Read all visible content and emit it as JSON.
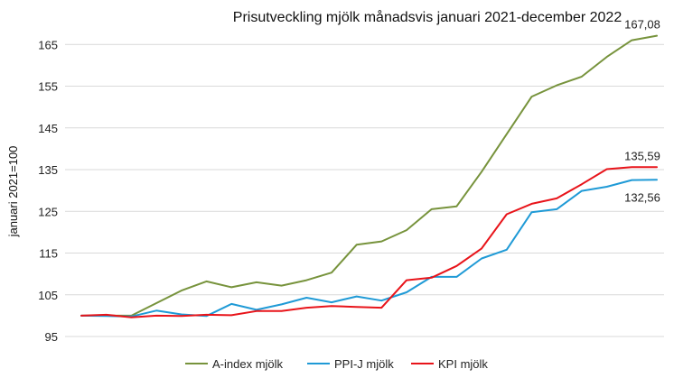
{
  "chart_data": {
    "type": "line",
    "title": "Prisutveckling mjölk månadsvis januari 2021-december 2022",
    "xlabel": "",
    "ylabel": "januari 2021=100",
    "ylim": [
      95,
      167
    ],
    "yticks": [
      95,
      105,
      115,
      125,
      135,
      145,
      155,
      165
    ],
    "ytick_labels": [
      "95",
      "105",
      "115",
      "125",
      "135",
      "145",
      "155",
      "165"
    ],
    "x": [
      1,
      2,
      3,
      4,
      5,
      6,
      7,
      8,
      9,
      10,
      11,
      12,
      13,
      14,
      15,
      16,
      17,
      18,
      19,
      20,
      21,
      22,
      23,
      24
    ],
    "grid": true,
    "legend_position": "bottom",
    "series": [
      {
        "name": "A-index mjölk",
        "color": "#77933c",
        "values": [
          100,
          100,
          100,
          103,
          106,
          108.2,
          106.8,
          108,
          107.2,
          108.5,
          110.3,
          117,
          117.8,
          120.5,
          125.5,
          126.2,
          134.5,
          143.5,
          152.5,
          155.2,
          157.3,
          162,
          166,
          167.08
        ]
      },
      {
        "name": "PPI-J mjölk",
        "color": "#1f9ad6",
        "values": [
          100,
          99.9,
          99.8,
          101.2,
          100.3,
          99.9,
          102.8,
          101.4,
          102.7,
          104.3,
          103.2,
          104.6,
          103.6,
          105.6,
          109.3,
          109.3,
          113.7,
          115.8,
          124.8,
          125.5,
          129.9,
          130.9,
          132.5,
          132.56
        ]
      },
      {
        "name": "KPI mjölk",
        "color": "#e8141a",
        "values": [
          100,
          100.2,
          99.6,
          100,
          99.9,
          100.2,
          100.1,
          101.1,
          101.1,
          101.9,
          102.3,
          102.1,
          101.9,
          108.5,
          109.1,
          111.9,
          116.1,
          124.3,
          126.8,
          128.1,
          131.5,
          135.1,
          135.59,
          135.59
        ]
      }
    ],
    "annotations": [
      {
        "series": 0,
        "index": 23,
        "text": "167,08",
        "placement": "above"
      },
      {
        "series": 2,
        "index": 23,
        "text": "135,59",
        "placement": "above"
      },
      {
        "series": 1,
        "index": 23,
        "text": "132,56",
        "placement": "below"
      }
    ]
  }
}
